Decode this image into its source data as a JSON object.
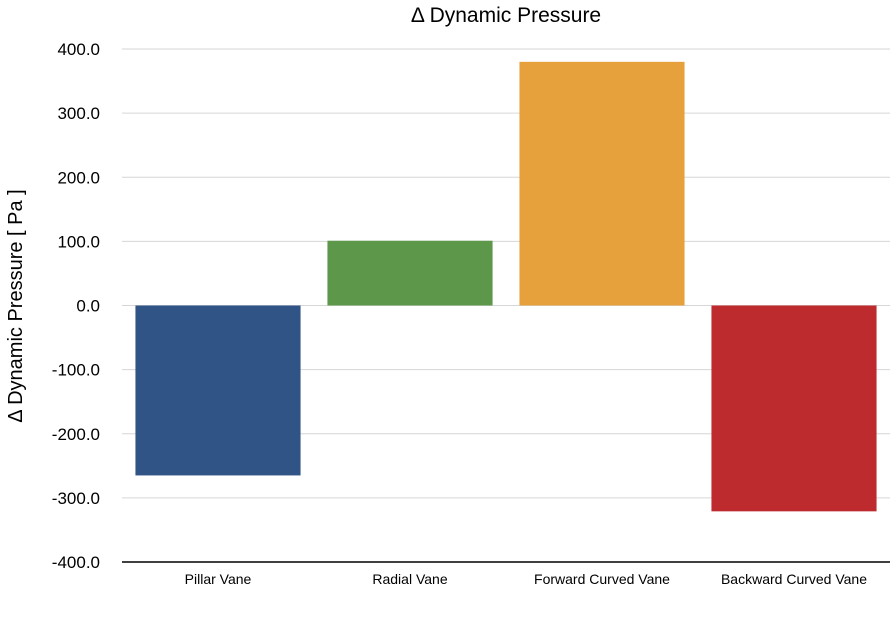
{
  "chart_data": {
    "type": "bar",
    "title": "Δ Dynamic Pressure",
    "xlabel": "",
    "ylabel": "Δ Dynamic Pressure [ Pa ]",
    "categories": [
      "Pillar Vane",
      "Radial Vane",
      "Forward Curved Vane",
      "Backward Curved Vane"
    ],
    "values": [
      -265,
      101,
      380,
      -321
    ],
    "colors": [
      "#315487",
      "#5c974a",
      "#e7a13c",
      "#bd2b2f"
    ],
    "ylim": [
      -400,
      400
    ],
    "yticks": [
      400,
      300,
      200,
      100,
      0,
      -100,
      -200,
      -300,
      -400
    ],
    "ytick_labels": [
      "400.0",
      "300.0",
      "200.0",
      "100.0",
      "0.0",
      "-100.0",
      "-200.0",
      "-300.0",
      "-400.0"
    ],
    "grid": true,
    "legend": "none"
  }
}
